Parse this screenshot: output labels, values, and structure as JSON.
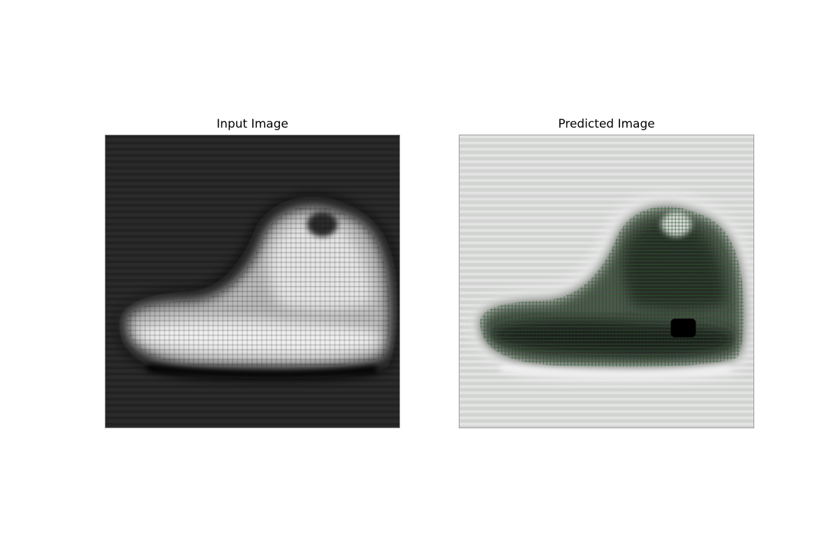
{
  "figure": {
    "panels": [
      {
        "title": "Input Image",
        "image_description": "grayscale reconstruction of an ankle boot, light boot on dark background with ringing artifacts",
        "background_color": "#2a2a2a",
        "foreground_color": "#e8e8e8"
      },
      {
        "title": "Predicted Image",
        "image_description": "inverted reconstruction of an ankle boot, dark boot on light gray background with green-tinted checkerboard artifacts",
        "background_color": "#d2d4d2",
        "foreground_color": "#1a1f1a",
        "artifact_color": "#2f6b2f"
      }
    ]
  }
}
